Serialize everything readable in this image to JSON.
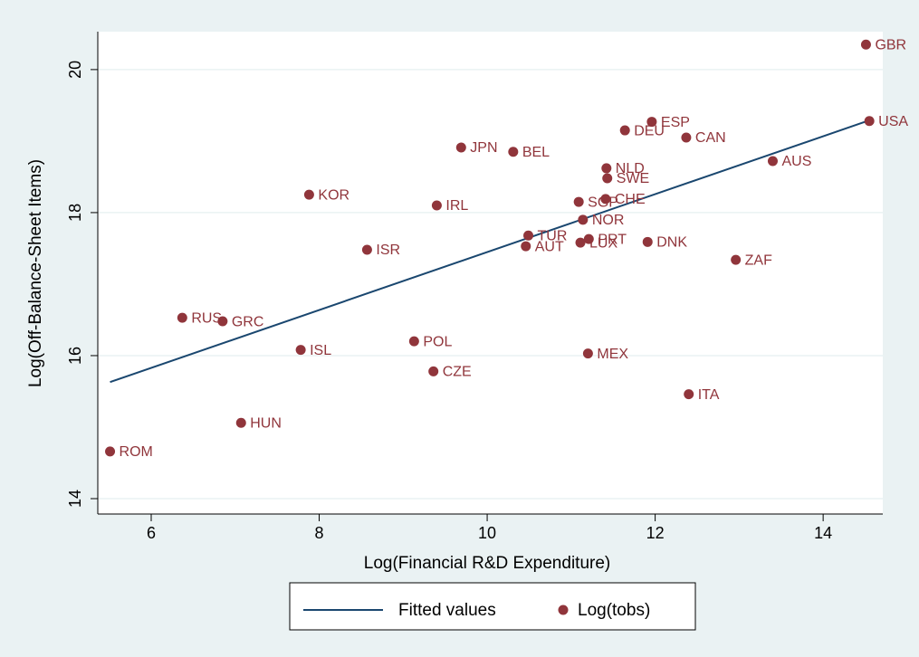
{
  "chart_data": {
    "type": "scatter",
    "xlabel": "Log(Financial R&D Expenditure)",
    "ylabel": "Log(Off-Balance-Sheet Items)",
    "xlim": [
      5.364,
      14.71
    ],
    "ylim": [
      13.785,
      20.53
    ],
    "xticks": [
      6,
      8,
      10,
      12,
      14
    ],
    "yticks": [
      14,
      16,
      18,
      20
    ],
    "grid": true,
    "legend": "bottom",
    "series": [
      {
        "name": "Fitted values",
        "type": "line",
        "color": "#1a476f",
        "x": [
          5.51,
          14.55
        ],
        "values": [
          15.63,
          19.29
        ]
      },
      {
        "name": "Log(tobs)",
        "type": "scatter",
        "color": "#90353b",
        "labels": [
          "GBR",
          "USA",
          "ESP",
          "DEU",
          "CAN",
          "JPN",
          "BEL",
          "AUS",
          "NLD",
          "SWE",
          "KOR",
          "IRL",
          "SGP",
          "CHE",
          "NOR",
          "TUR",
          "PRT",
          "LUX",
          "AUT",
          "DNK",
          "ISR",
          "ZAF",
          "RUS",
          "GRC",
          "POL",
          "ISL",
          "MEX",
          "CZE",
          "ITA",
          "HUN",
          "ROM"
        ],
        "x": [
          14.51,
          14.55,
          11.96,
          11.64,
          12.37,
          9.69,
          10.31,
          13.4,
          11.42,
          11.43,
          7.88,
          9.4,
          11.09,
          11.41,
          11.14,
          10.49,
          11.21,
          11.11,
          10.46,
          11.91,
          8.57,
          12.96,
          6.37,
          6.85,
          9.13,
          7.78,
          11.2,
          9.36,
          12.4,
          7.07,
          5.51
        ],
        "values": [
          20.35,
          19.28,
          19.27,
          19.15,
          19.05,
          18.91,
          18.85,
          18.72,
          18.62,
          18.48,
          18.25,
          18.1,
          18.15,
          18.19,
          17.9,
          17.68,
          17.63,
          17.58,
          17.53,
          17.59,
          17.48,
          17.34,
          16.53,
          16.48,
          16.2,
          16.08,
          16.03,
          15.78,
          15.46,
          15.06,
          14.66
        ]
      }
    ]
  }
}
